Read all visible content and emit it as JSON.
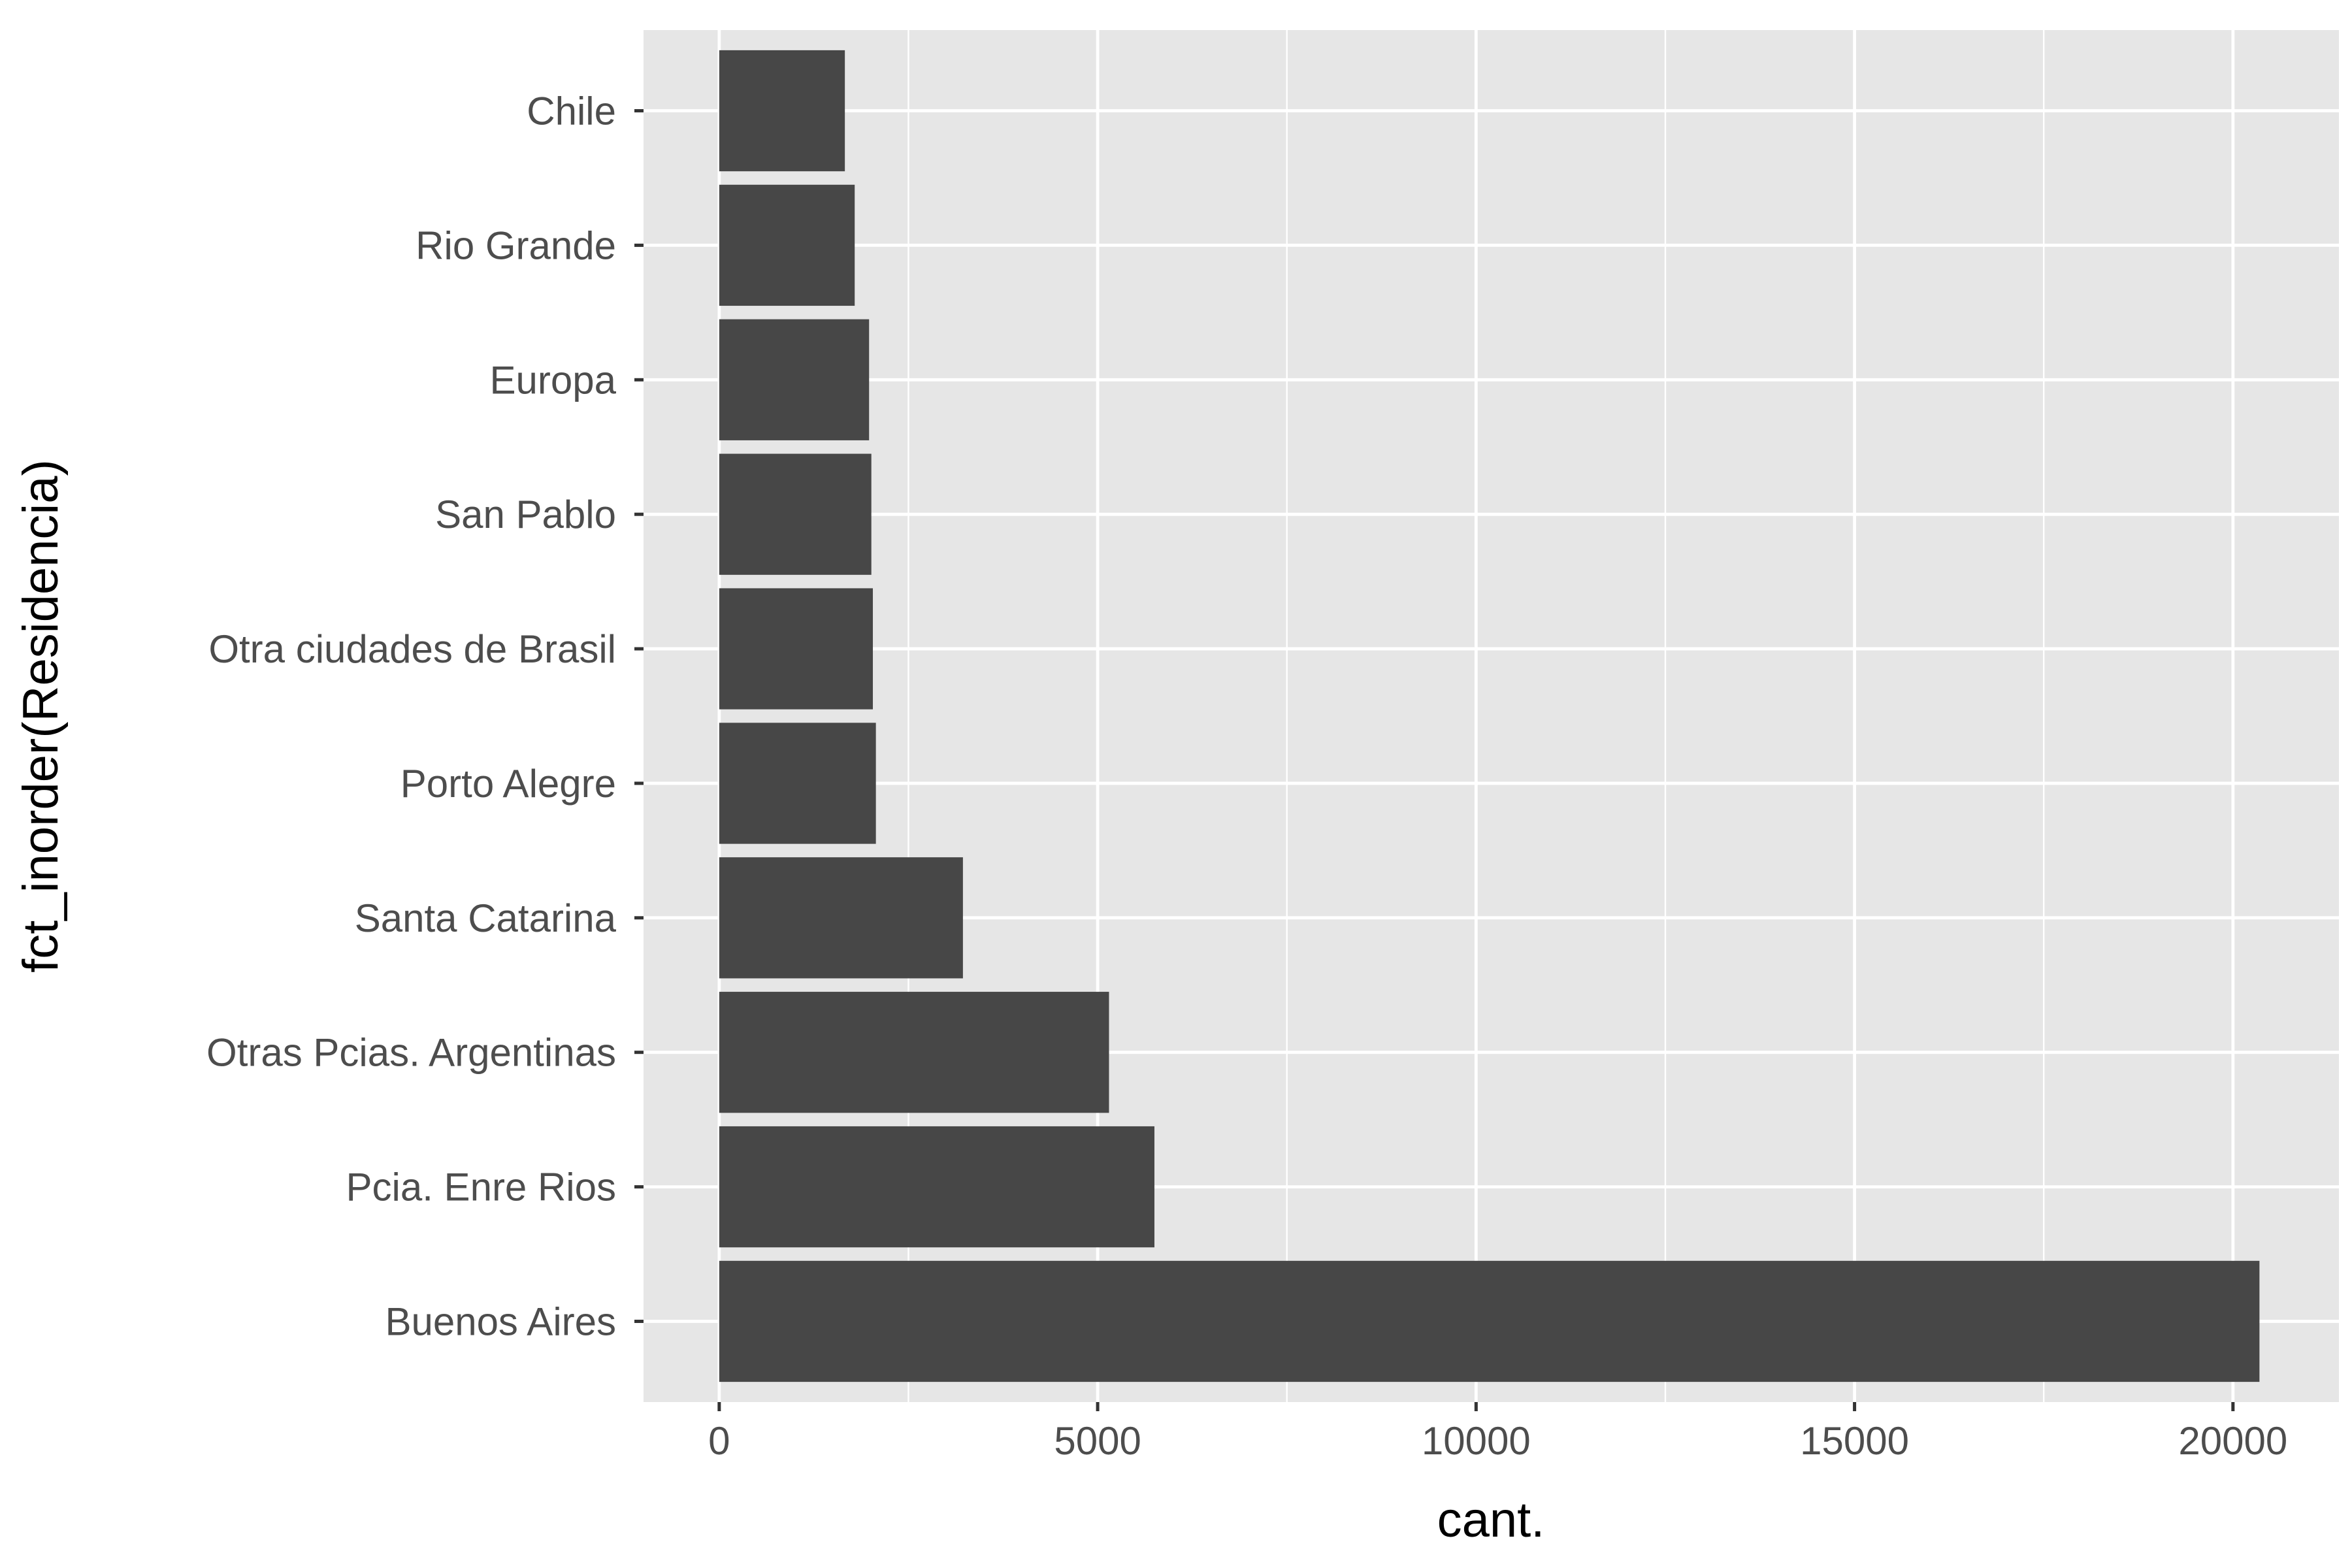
{
  "chart_data": {
    "type": "bar",
    "orientation": "horizontal",
    "categories": [
      "Buenos Aires",
      "Pcia. Enre Rios",
      "Otras Pcias. Argentinas",
      "Santa Catarina",
      "Porto Alegre",
      "Otra  ciudades de Brasil",
      "San Pablo",
      "Europa",
      "Rio Grande",
      "Chile"
    ],
    "values": [
      20350,
      5750,
      5150,
      3220,
      2070,
      2030,
      2010,
      1980,
      1790,
      1660
    ],
    "xlabel": "cant.",
    "ylabel": "fct_inorder(Residencia)",
    "xlim": [
      -1000,
      21400
    ],
    "x_ticks": [
      0,
      5000,
      10000,
      15000,
      20000
    ],
    "x_tick_labels": [
      "0",
      "5000",
      "10000",
      "15000",
      "20000"
    ],
    "grid": true,
    "bar_color": "#474747",
    "panel_color": "#e6e6e6",
    "grid_color": "#ffffff"
  }
}
